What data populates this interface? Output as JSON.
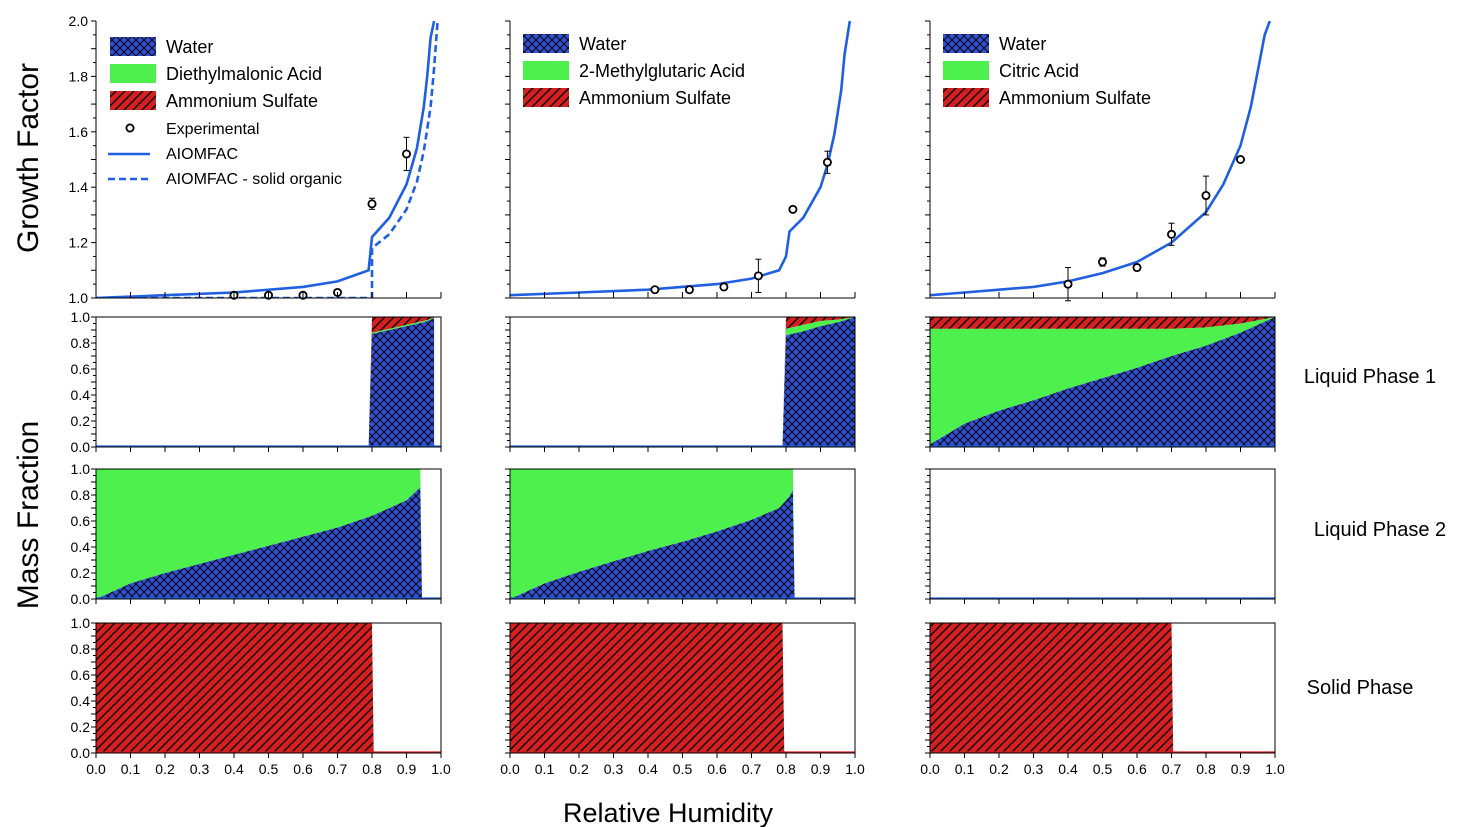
{
  "figure": {
    "growth_ylabel": "Growth Factor",
    "mass_ylabel": "Mass Fraction",
    "xlabel": "Relative Humidity",
    "row_labels": [
      "Liquid Phase 1",
      "Liquid Phase 2",
      "Solid Phase"
    ]
  },
  "colors": {
    "water": "#2f50d6",
    "organic": "#4df04d",
    "sulfate": "#d42020",
    "model": "#1f5fe0",
    "empty": "#ffffff"
  },
  "chart_data": [
    {
      "type": "line",
      "column": 0,
      "xlim": [
        0,
        1
      ],
      "ylim": [
        1.0,
        2.0
      ],
      "yticks": [
        "1.0",
        "1.2",
        "1.4",
        "1.6",
        "1.8",
        "2.0"
      ],
      "legend_components": [
        "Water",
        "Diethylmalonic Acid",
        "Ammonium Sulfate"
      ],
      "legend_series": [
        "Experimental",
        "AIOMFAC",
        "AIOMFAC - solid organic"
      ],
      "experimental": {
        "x": [
          0.4,
          0.5,
          0.6,
          0.7,
          0.8,
          0.9
        ],
        "y": [
          1.01,
          1.01,
          1.01,
          1.02,
          1.34,
          1.52
        ],
        "err": [
          0.0,
          0.0,
          0.0,
          0.0,
          0.02,
          0.06
        ]
      },
      "aiomfac": {
        "x": [
          0.0,
          0.2,
          0.4,
          0.6,
          0.7,
          0.79,
          0.8,
          0.85,
          0.9,
          0.93,
          0.95,
          0.96,
          0.97,
          0.98
        ],
        "y": [
          1.0,
          1.01,
          1.02,
          1.04,
          1.06,
          1.1,
          1.22,
          1.29,
          1.41,
          1.54,
          1.69,
          1.8,
          1.94,
          2.0
        ]
      },
      "aiomfac_solid_organic": {
        "x": [
          0.0,
          0.2,
          0.4,
          0.6,
          0.7,
          0.8,
          0.8,
          0.85,
          0.9,
          0.93,
          0.95,
          0.97,
          0.98,
          0.99
        ],
        "y": [
          1.0,
          1.0,
          1.0,
          1.0,
          1.0,
          1.0,
          1.18,
          1.23,
          1.32,
          1.42,
          1.53,
          1.69,
          1.83,
          2.0
        ]
      }
    },
    {
      "type": "line",
      "column": 1,
      "xlim": [
        0,
        1
      ],
      "ylim": [
        1.0,
        2.0
      ],
      "legend_components": [
        "Water",
        "2-Methylglutaric Acid",
        "Ammonium Sulfate"
      ],
      "experimental": {
        "x": [
          0.42,
          0.52,
          0.62,
          0.72,
          0.82,
          0.92
        ],
        "y": [
          1.03,
          1.03,
          1.04,
          1.08,
          1.32,
          1.49
        ],
        "err": [
          0.0,
          0.0,
          0.0,
          0.06,
          0.0,
          0.04
        ]
      },
      "aiomfac": {
        "x": [
          0.0,
          0.2,
          0.4,
          0.6,
          0.7,
          0.78,
          0.8,
          0.81,
          0.85,
          0.9,
          0.92,
          0.94,
          0.96,
          0.97,
          0.985
        ],
        "y": [
          1.01,
          1.02,
          1.03,
          1.05,
          1.07,
          1.1,
          1.15,
          1.24,
          1.29,
          1.4,
          1.48,
          1.59,
          1.75,
          1.88,
          2.0
        ]
      }
    },
    {
      "type": "line",
      "column": 2,
      "xlim": [
        0,
        1
      ],
      "ylim": [
        1.0,
        2.0
      ],
      "legend_components": [
        "Water",
        "Citric Acid",
        "Ammonium Sulfate"
      ],
      "experimental": {
        "x": [
          0.4,
          0.5,
          0.6,
          0.7,
          0.8,
          0.9
        ],
        "y": [
          1.05,
          1.13,
          1.11,
          1.23,
          1.37,
          1.5
        ],
        "err": [
          0.06,
          0.015,
          0.0,
          0.04,
          0.07,
          0.0
        ]
      },
      "aiomfac": {
        "x": [
          0.0,
          0.1,
          0.2,
          0.3,
          0.4,
          0.5,
          0.6,
          0.7,
          0.8,
          0.85,
          0.9,
          0.93,
          0.95,
          0.97,
          0.985
        ],
        "y": [
          1.01,
          1.02,
          1.03,
          1.04,
          1.06,
          1.09,
          1.13,
          1.2,
          1.31,
          1.41,
          1.55,
          1.69,
          1.82,
          1.95,
          2.0
        ]
      }
    },
    {
      "type": "area",
      "column": 0,
      "row": 0,
      "x": [
        0.0,
        0.79,
        0.8,
        0.85,
        0.9,
        0.95,
        0.98
      ],
      "water": [
        0.0,
        0.0,
        0.87,
        0.9,
        0.93,
        0.96,
        0.99
      ],
      "organic": [
        0.0,
        0.0,
        0.01,
        0.01,
        0.01,
        0.01,
        0.005
      ],
      "sulfate": [
        0.0,
        0.0,
        0.12,
        0.09,
        0.06,
        0.03,
        0.005
      ]
    },
    {
      "type": "area",
      "column": 1,
      "row": 0,
      "x": [
        0.0,
        0.79,
        0.8,
        0.85,
        0.9,
        0.95,
        1.0
      ],
      "water": [
        0.0,
        0.0,
        0.86,
        0.89,
        0.93,
        0.96,
        1.0
      ],
      "organic": [
        0.0,
        0.0,
        0.05,
        0.05,
        0.04,
        0.02,
        0.0
      ],
      "sulfate": [
        0.0,
        0.0,
        0.09,
        0.06,
        0.03,
        0.02,
        0.0
      ]
    },
    {
      "type": "area",
      "column": 2,
      "row": 0,
      "x": [
        0.0,
        0.1,
        0.2,
        0.3,
        0.4,
        0.5,
        0.6,
        0.7,
        0.8,
        0.9,
        1.0
      ],
      "water": [
        0.02,
        0.18,
        0.28,
        0.36,
        0.45,
        0.53,
        0.61,
        0.7,
        0.78,
        0.88,
        1.0
      ],
      "organic": [
        0.89,
        0.73,
        0.63,
        0.55,
        0.46,
        0.38,
        0.3,
        0.21,
        0.14,
        0.07,
        0.0
      ],
      "sulfate": [
        0.09,
        0.09,
        0.09,
        0.09,
        0.09,
        0.09,
        0.09,
        0.09,
        0.08,
        0.05,
        0.0
      ]
    },
    {
      "type": "area",
      "column": 0,
      "row": 1,
      "x": [
        0.0,
        0.1,
        0.2,
        0.3,
        0.4,
        0.5,
        0.6,
        0.7,
        0.8,
        0.9,
        0.94,
        0.945
      ],
      "water": [
        0.0,
        0.12,
        0.2,
        0.27,
        0.34,
        0.41,
        0.48,
        0.55,
        0.64,
        0.76,
        0.86,
        0.0
      ],
      "organic": [
        1.0,
        0.88,
        0.8,
        0.73,
        0.66,
        0.59,
        0.52,
        0.45,
        0.36,
        0.24,
        0.14,
        0.0
      ],
      "sulfate": [
        0.0,
        0.0,
        0.0,
        0.0,
        0.0,
        0.0,
        0.0,
        0.0,
        0.0,
        0.0,
        0.0,
        0.0
      ]
    },
    {
      "type": "area",
      "column": 1,
      "row": 1,
      "x": [
        0.0,
        0.1,
        0.2,
        0.3,
        0.4,
        0.5,
        0.6,
        0.7,
        0.78,
        0.81,
        0.82,
        0.825
      ],
      "water": [
        0.0,
        0.12,
        0.21,
        0.29,
        0.37,
        0.44,
        0.52,
        0.61,
        0.7,
        0.79,
        0.84,
        0.0
      ],
      "organic": [
        1.0,
        0.88,
        0.79,
        0.71,
        0.63,
        0.56,
        0.48,
        0.39,
        0.3,
        0.21,
        0.16,
        0.0
      ],
      "sulfate": [
        0.0,
        0.0,
        0.0,
        0.0,
        0.0,
        0.0,
        0.0,
        0.0,
        0.0,
        0.0,
        0.0,
        0.0
      ]
    },
    {
      "type": "area",
      "column": 2,
      "row": 1,
      "x": [],
      "water": [],
      "organic": [],
      "sulfate": []
    },
    {
      "type": "area",
      "column": 0,
      "row": 2,
      "x": [
        0.0,
        0.8,
        0.805
      ],
      "water": [
        0.0,
        0.0,
        0.0
      ],
      "organic": [
        0.0,
        0.0,
        0.0
      ],
      "sulfate": [
        1.0,
        1.0,
        0.0
      ]
    },
    {
      "type": "area",
      "column": 1,
      "row": 2,
      "x": [
        0.0,
        0.79,
        0.795
      ],
      "water": [
        0.0,
        0.0,
        0.0
      ],
      "organic": [
        0.0,
        0.0,
        0.0
      ],
      "sulfate": [
        1.0,
        1.0,
        0.0
      ]
    },
    {
      "type": "area",
      "column": 2,
      "row": 2,
      "x": [
        0.0,
        0.7,
        0.705
      ],
      "water": [
        0.0,
        0.0,
        0.0
      ],
      "organic": [
        0.0,
        0.0,
        0.0
      ],
      "sulfate": [
        1.0,
        1.0,
        0.0
      ]
    }
  ],
  "axes": {
    "mass_yticks": [
      "0.0",
      "0.2",
      "0.4",
      "0.6",
      "0.8",
      "1.0"
    ],
    "xticks": [
      "0.0",
      "0.1",
      "0.2",
      "0.3",
      "0.4",
      "0.5",
      "0.6",
      "0.7",
      "0.8",
      "0.9",
      "1.0"
    ]
  }
}
